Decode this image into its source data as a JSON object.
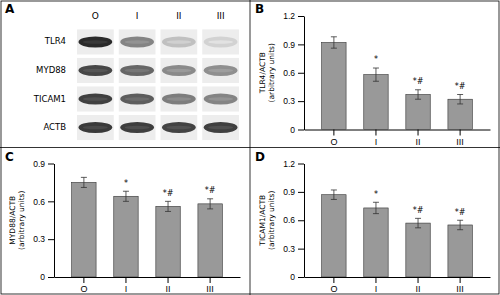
{
  "chart_data": [
    {
      "type": "heatmap",
      "title": "A",
      "categories": [
        "O",
        "I",
        "II",
        "III"
      ],
      "rows": [
        "TLR4",
        "MYD88",
        "TICAM1",
        "ACTB"
      ],
      "cells": [
        [
          0.95,
          0.55,
          0.28,
          0.2
        ],
        [
          0.82,
          0.68,
          0.52,
          0.5
        ],
        [
          0.85,
          0.72,
          0.58,
          0.55
        ],
        [
          0.88,
          0.86,
          0.84,
          0.85
        ]
      ]
    },
    {
      "type": "bar",
      "title": "B",
      "categories": [
        "O",
        "I",
        "II",
        "III"
      ],
      "values": [
        0.92,
        0.58,
        0.37,
        0.32
      ],
      "errors": [
        0.06,
        0.07,
        0.05,
        0.05
      ],
      "annotations": [
        null,
        "*",
        "*#",
        "*#"
      ],
      "ylabel": "TLR4/ACTB\n(arbitrary units)",
      "color": "#999999",
      "ylim": [
        0,
        1.2
      ],
      "yticks": [
        0,
        0.3,
        0.6,
        0.9,
        1.2
      ]
    },
    {
      "type": "bar",
      "title": "C",
      "categories": [
        "O",
        "I",
        "II",
        "III"
      ],
      "values": [
        0.75,
        0.64,
        0.56,
        0.58
      ],
      "errors": [
        0.04,
        0.04,
        0.04,
        0.04
      ],
      "annotations": [
        null,
        "*",
        "*#",
        "*#"
      ],
      "ylabel": "MYD88/ACTB\n(arbitrary units)",
      "color": "#999999",
      "ylim": [
        0,
        0.9
      ],
      "yticks": [
        0,
        0.3,
        0.6,
        0.9
      ]
    },
    {
      "type": "bar",
      "title": "D",
      "categories": [
        "O",
        "I",
        "II",
        "III"
      ],
      "values": [
        0.87,
        0.73,
        0.57,
        0.55
      ],
      "errors": [
        0.05,
        0.06,
        0.05,
        0.05
      ],
      "annotations": [
        null,
        "*",
        "*#",
        "*#"
      ],
      "ylabel": "TICAM1/ACTB\n(arbitrary units)",
      "color": "#999999",
      "ylim": [
        0,
        1.2
      ],
      "yticks": [
        0,
        0.3,
        0.6,
        0.9,
        1.2
      ]
    }
  ]
}
